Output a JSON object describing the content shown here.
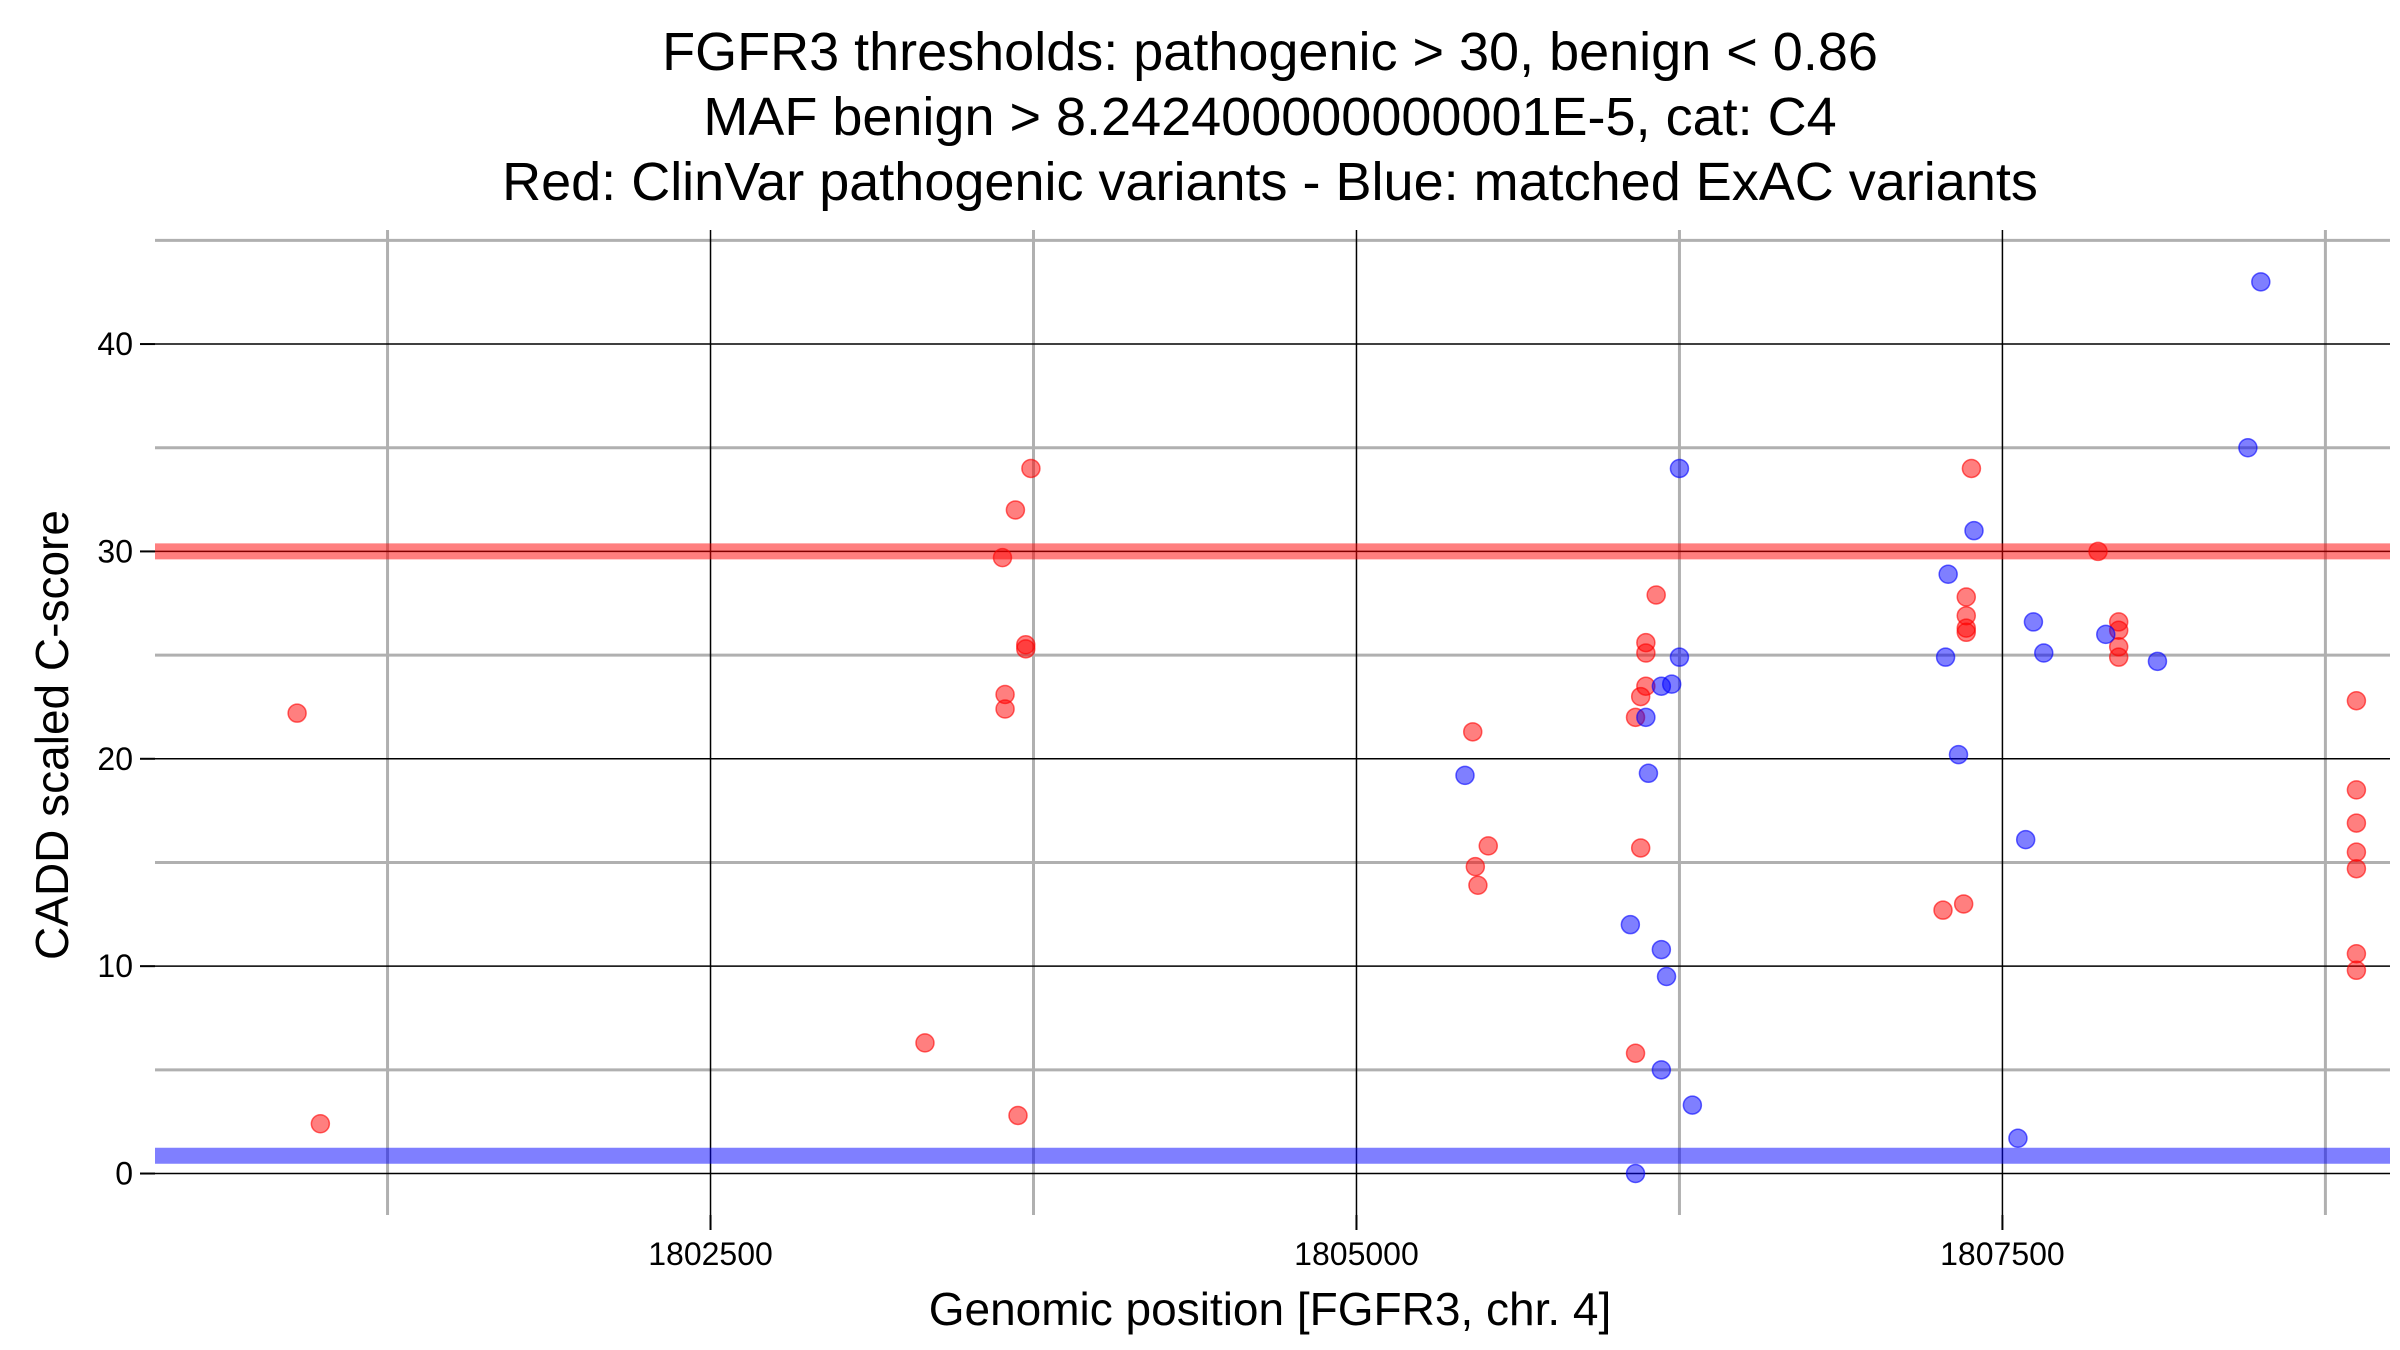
{
  "chart_data": {
    "type": "scatter",
    "title_lines": [
      "FGFR3 thresholds: pathogenic > 30, benign < 0.86",
      "MAF benign > 8.242400000000001E-5, cat: C4",
      "Red: ClinVar pathogenic variants - Blue: matched ExAC variants"
    ],
    "xlabel": "Genomic position [FGFR3, chr. 4]",
    "ylabel": "CADD scaled C-score",
    "xlim": [
      1800350,
      1809000
    ],
    "ylim": [
      -2,
      45.5
    ],
    "x_ticks": [
      1802500,
      1805000,
      1807500
    ],
    "x_tick_labels": [
      "1802500",
      "1805000",
      "1807500"
    ],
    "y_ticks": [
      0,
      10,
      20,
      30,
      40
    ],
    "y_tick_labels": [
      "0",
      "10",
      "20",
      "30",
      "40"
    ],
    "grid": true,
    "thresholds": [
      {
        "axis": "y",
        "value": 30,
        "color": "#ff0000"
      },
      {
        "axis": "y",
        "value": 0.86,
        "color": "#0000ff"
      }
    ],
    "series": [
      {
        "color": "#ff0000",
        "points": [
          [
            1800900,
            22.2
          ],
          [
            1800990,
            2.4
          ],
          [
            1803330,
            6.3
          ],
          [
            1803630,
            29.7
          ],
          [
            1803640,
            23.1
          ],
          [
            1803640,
            22.4
          ],
          [
            1803680,
            32.0
          ],
          [
            1803690,
            2.8
          ],
          [
            1803720,
            25.5
          ],
          [
            1803720,
            25.3
          ],
          [
            1803740,
            34.0
          ],
          [
            1805450,
            21.3
          ],
          [
            1805460,
            14.8
          ],
          [
            1805470,
            13.9
          ],
          [
            1805510,
            15.8
          ],
          [
            1806080,
            5.8
          ],
          [
            1806080,
            22.0
          ],
          [
            1806100,
            23.0
          ],
          [
            1806100,
            15.7
          ],
          [
            1806120,
            25.6
          ],
          [
            1806120,
            25.1
          ],
          [
            1806120,
            23.5
          ],
          [
            1806160,
            27.9
          ],
          [
            1807270,
            12.7
          ],
          [
            1807350,
            13.0
          ],
          [
            1807360,
            27.8
          ],
          [
            1807360,
            26.9
          ],
          [
            1807360,
            26.3
          ],
          [
            1807360,
            26.1
          ],
          [
            1807380,
            34.0
          ],
          [
            1807870,
            30.0
          ],
          [
            1807950,
            26.6
          ],
          [
            1807950,
            26.2
          ],
          [
            1807950,
            25.4
          ],
          [
            1807950,
            24.9
          ],
          [
            1808870,
            22.8
          ],
          [
            1808870,
            18.5
          ],
          [
            1808870,
            16.9
          ],
          [
            1808870,
            15.5
          ],
          [
            1808870,
            14.7
          ],
          [
            1808870,
            10.6
          ],
          [
            1808870,
            9.8
          ]
        ]
      },
      {
        "color": "#0000ff",
        "points": [
          [
            1805420,
            19.2
          ],
          [
            1806060,
            12.0
          ],
          [
            1806080,
            0.0
          ],
          [
            1806120,
            22.0
          ],
          [
            1806130,
            19.3
          ],
          [
            1806180,
            10.8
          ],
          [
            1806180,
            5.0
          ],
          [
            1806180,
            23.5
          ],
          [
            1806200,
            9.5
          ],
          [
            1806220,
            23.6
          ],
          [
            1806250,
            24.9
          ],
          [
            1806250,
            34.0
          ],
          [
            1806300,
            3.3
          ],
          [
            1807280,
            24.9
          ],
          [
            1807290,
            28.9
          ],
          [
            1807330,
            20.2
          ],
          [
            1807390,
            31.0
          ],
          [
            1807560,
            1.7
          ],
          [
            1807590,
            16.1
          ],
          [
            1807620,
            26.6
          ],
          [
            1807660,
            25.1
          ],
          [
            1807900,
            26.0
          ],
          [
            1808100,
            24.7
          ],
          [
            1808450,
            35.0
          ],
          [
            1808500,
            43.0
          ]
        ]
      }
    ]
  }
}
